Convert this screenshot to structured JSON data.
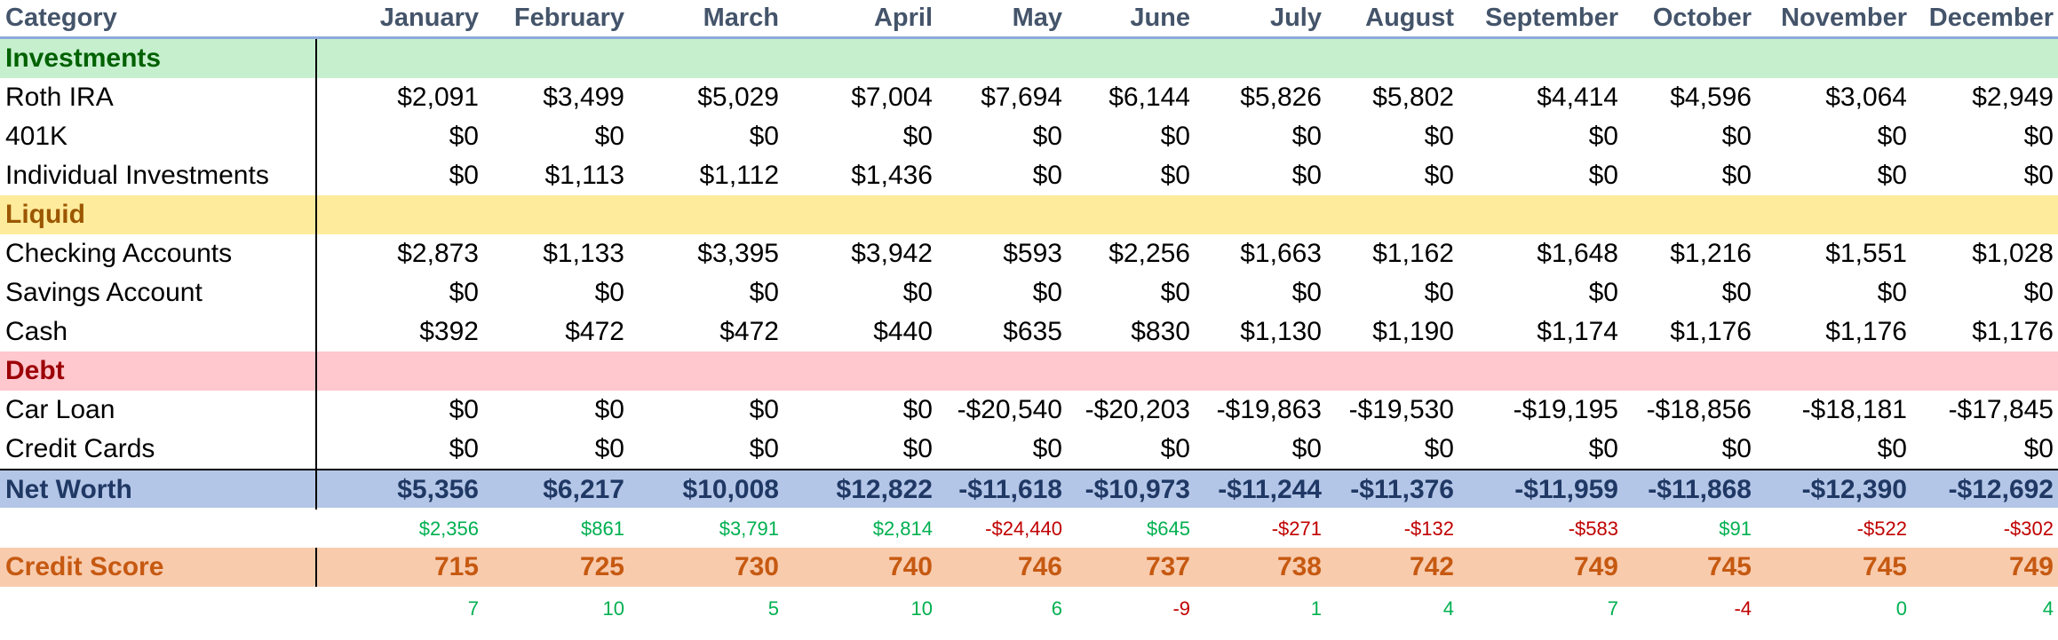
{
  "header": {
    "category": "Category",
    "months": [
      "January",
      "February",
      "March",
      "April",
      "May",
      "June",
      "July",
      "August",
      "September",
      "October",
      "November",
      "December"
    ]
  },
  "sections": {
    "investments": "Investments",
    "liquid": "Liquid",
    "debt": "Debt"
  },
  "rows": {
    "roth_ira": {
      "label": "Roth IRA",
      "values": [
        "$2,091",
        "$3,499",
        "$5,029",
        "$7,004",
        "$7,694",
        "$6,144",
        "$5,826",
        "$5,802",
        "$4,414",
        "$4,596",
        "$3,064",
        "$2,949"
      ]
    },
    "k401": {
      "label": "401K",
      "values": [
        "$0",
        "$0",
        "$0",
        "$0",
        "$0",
        "$0",
        "$0",
        "$0",
        "$0",
        "$0",
        "$0",
        "$0"
      ]
    },
    "individual": {
      "label": "Individual Investments",
      "values": [
        "$0",
        "$1,113",
        "$1,112",
        "$1,436",
        "$0",
        "$0",
        "$0",
        "$0",
        "$0",
        "$0",
        "$0",
        "$0"
      ]
    },
    "checking": {
      "label": "Checking Accounts",
      "values": [
        "$2,873",
        "$1,133",
        "$3,395",
        "$3,942",
        "$593",
        "$2,256",
        "$1,663",
        "$1,162",
        "$1,648",
        "$1,216",
        "$1,551",
        "$1,028"
      ]
    },
    "savings": {
      "label": "Savings Account",
      "values": [
        "$0",
        "$0",
        "$0",
        "$0",
        "$0",
        "$0",
        "$0",
        "$0",
        "$0",
        "$0",
        "$0",
        "$0"
      ]
    },
    "cash": {
      "label": "Cash",
      "values": [
        "$392",
        "$472",
        "$472",
        "$440",
        "$635",
        "$830",
        "$1,130",
        "$1,190",
        "$1,174",
        "$1,176",
        "$1,176",
        "$1,176"
      ]
    },
    "car_loan": {
      "label": "Car Loan",
      "values": [
        "$0",
        "$0",
        "$0",
        "$0",
        "-$20,540",
        "-$20,203",
        "-$19,863",
        "-$19,530",
        "-$19,195",
        "-$18,856",
        "-$18,181",
        "-$17,845"
      ]
    },
    "credit_cards": {
      "label": "Credit Cards",
      "values": [
        "$0",
        "$0",
        "$0",
        "$0",
        "$0",
        "$0",
        "$0",
        "$0",
        "$0",
        "$0",
        "$0",
        "$0"
      ]
    }
  },
  "net_worth": {
    "label": "Net Worth",
    "values": [
      "$5,356",
      "$6,217",
      "$10,008",
      "$12,822",
      "-$11,618",
      "-$10,973",
      "-$11,244",
      "-$11,376",
      "-$11,959",
      "-$11,868",
      "-$12,390",
      "-$12,692"
    ],
    "changes": [
      "$2,356",
      "$861",
      "$3,791",
      "$2,814",
      "-$24,440",
      "$645",
      "-$271",
      "-$132",
      "-$583",
      "$91",
      "-$522",
      "-$302"
    ]
  },
  "credit_score": {
    "label": "Credit Score",
    "values": [
      "715",
      "725",
      "730",
      "740",
      "746",
      "737",
      "738",
      "742",
      "749",
      "745",
      "745",
      "749"
    ],
    "changes": [
      "7",
      "10",
      "5",
      "10",
      "6",
      "-9",
      "1",
      "4",
      "7",
      "-4",
      "0",
      "4"
    ]
  },
  "colors": {
    "positive": "#00b050",
    "negative": "#c00000",
    "investments_bg": "#c6efce",
    "liquid_bg": "#ffeb9c",
    "debt_bg": "#ffc7ce",
    "net_worth_bg": "#b4c6e7",
    "credit_score_bg": "#f8cbad",
    "header_text": "#44546a",
    "header_rule": "#8ea9db"
  }
}
